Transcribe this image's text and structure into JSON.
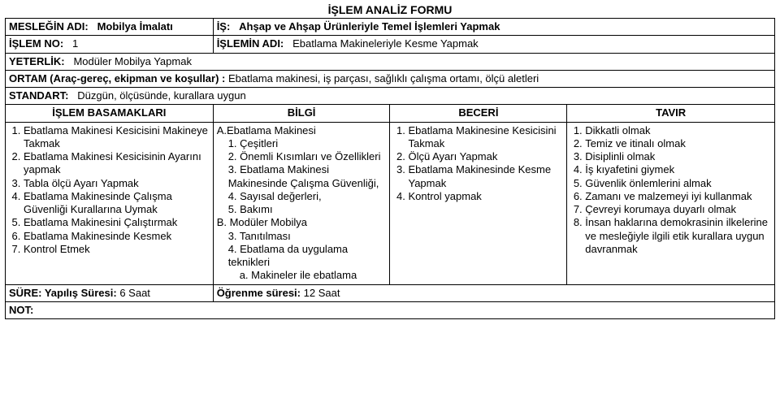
{
  "title": "İŞLEM ANALİZ FORMU",
  "meslek": {
    "label": "MESLEĞİN ADI:",
    "value": "Mobilya İmalatı"
  },
  "is": {
    "label": "İŞ:",
    "value": "Ahşap ve Ahşap Ürünleriyle Temel İşlemleri Yapmak"
  },
  "islemno": {
    "label": "İŞLEM NO:",
    "value": "1"
  },
  "islemin": {
    "label": "İŞLEMİN ADI:",
    "value": "Ebatlama Makineleriyle Kesme Yapmak"
  },
  "yeterlik": {
    "label": "YETERLİK:",
    "value": "Modüler Mobilya Yapmak"
  },
  "ortam": {
    "label": "ORTAM (Araç-gereç, ekipman ve koşullar) :",
    "value": "Ebatlama makinesi, iş parçası, sağlıklı çalışma ortamı, ölçü aletleri"
  },
  "standart": {
    "label": "STANDART:",
    "value": "Düzgün, ölçüsünde, kurallara uygun"
  },
  "headers": {
    "basamak": "İŞLEM BASAMAKLARI",
    "bilgi": "BİLGİ",
    "beceri": "BECERİ",
    "tavir": "TAVIR"
  },
  "basamak": [
    "Ebatlama Makinesi Kesicisini Makineye Takmak",
    "Ebatlama Makinesi Kesicisinin Ayarını yapmak",
    "Tabla ölçü Ayarı Yapmak",
    "Ebatlama Makinesinde Çalışma Güvenliği Kurallarına Uymak",
    "Ebatlama Makinesini Çalıştırmak",
    "Ebatlama Makinesinde Kesmek",
    "Kontrol Etmek"
  ],
  "bilgi": [
    {
      "lvl": 1,
      "t": "A.Ebatlama Makinesi"
    },
    {
      "lvl": 2,
      "t": "1. Çeşitleri"
    },
    {
      "lvl": 2,
      "t": "2. Önemli Kısımları ve Özellikleri"
    },
    {
      "lvl": 2,
      "t": "3. Ebatlama Makinesi Makinesinde Çalışma Güvenliği,"
    },
    {
      "lvl": 2,
      "t": "4. Sayısal değerleri,"
    },
    {
      "lvl": 2,
      "t": "5. Bakımı"
    },
    {
      "lvl": 1,
      "t": "B. Modüler Mobilya"
    },
    {
      "lvl": 2,
      "t": "3. Tanıtılması"
    },
    {
      "lvl": 2,
      "t": "4. Ebatlama da uygulama teknikleri"
    },
    {
      "lvl": 3,
      "t": "a. Makineler ile ebatlama"
    }
  ],
  "beceri": [
    "Ebatlama Makinesine Kesicisini Takmak",
    "Ölçü Ayarı Yapmak",
    "Ebatlama Makinesinde Kesme Yapmak",
    "Kontrol yapmak"
  ],
  "tavir": [
    "Dikkatli olmak",
    "Temiz ve itinalı olmak",
    "Disiplinli olmak",
    "İş kıyafetini giymek",
    "Güvenlik önlemlerini almak",
    "Zamanı ve malzemeyi iyi kullanmak",
    "Çevreyi korumaya duyarlı olmak",
    "İnsan haklarına demokrasinin ilkelerine ve mesleğiyle ilgili etik kurallara uygun davranmak"
  ],
  "sure": {
    "label": "SÜRE: Yapılış Süresi:",
    "value": "6 Saat"
  },
  "ogrenme": {
    "label": "Öğrenme süresi:",
    "value": "12 Saat"
  },
  "not": {
    "label": "NOT:"
  }
}
